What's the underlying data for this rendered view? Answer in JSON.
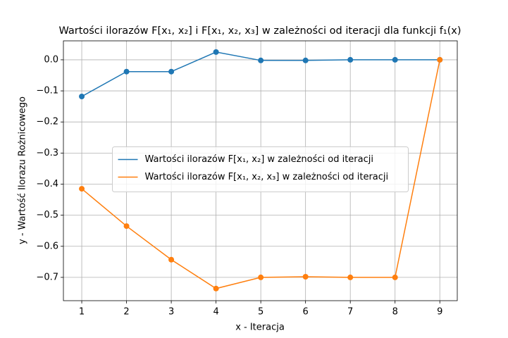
{
  "chart_data": {
    "type": "line",
    "title": "Wartości ilorazów F[x₁, x₂] i F[x₁, x₂, x₃] w zależności od iteracji dla funkcji f₁(x)",
    "x_label": "x - Iteracja",
    "y_label": "y - Wartość Ilorazu Rożnicowego",
    "x": [
      1,
      2,
      3,
      4,
      5,
      6,
      7,
      8,
      9
    ],
    "series": [
      {
        "name": "Wartości ilorazów F[x₁, x₂] w zależności od iteracji",
        "color": "#1f77b4",
        "values": [
          -0.118,
          -0.038,
          -0.038,
          0.025,
          -0.002,
          -0.002,
          0.0,
          0.0,
          0.0
        ]
      },
      {
        "name": "Wartości ilorazów F[x₁, x₂, x₃] w zależności od iteracji",
        "color": "#ff7f0e",
        "values": [
          -0.415,
          -0.535,
          -0.643,
          -0.736,
          -0.7,
          -0.698,
          -0.7,
          -0.7,
          0.0
        ]
      }
    ],
    "xlim": [
      0.59,
      9.39
    ],
    "ylim": [
      -0.775,
      0.061
    ],
    "xticks": [
      1,
      2,
      3,
      4,
      5,
      6,
      7,
      8,
      9
    ],
    "yticks": [
      {
        "value": 0,
        "label": "0.0"
      },
      {
        "value": -0.1,
        "label": "−0.1"
      },
      {
        "value": -0.2,
        "label": "−0.2"
      },
      {
        "value": -0.3,
        "label": "−0.3"
      },
      {
        "value": -0.4,
        "label": "−0.4"
      },
      {
        "value": -0.5,
        "label": "−0.5"
      },
      {
        "value": -0.6,
        "label": "−0.6"
      },
      {
        "value": -0.7,
        "label": "−0.7"
      }
    ],
    "grid": true,
    "markers": true,
    "legend": "center"
  }
}
